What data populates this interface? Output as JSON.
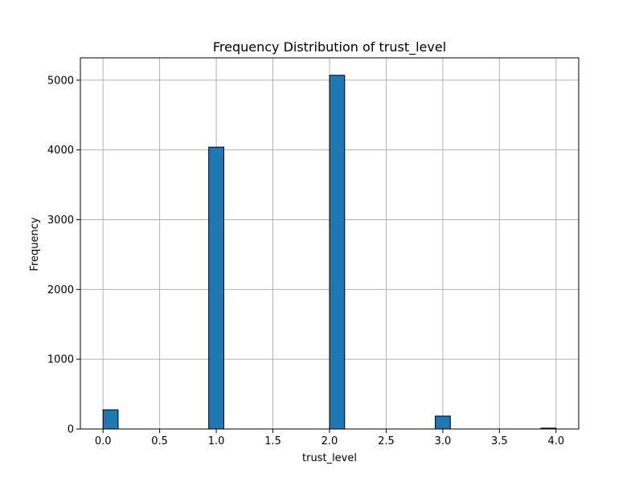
{
  "chart_data": {
    "type": "bar",
    "title": "Frequency Distribution of trust_level",
    "xlabel": "trust_level",
    "ylabel": "Frequency",
    "xlim": [
      -0.2,
      4.2
    ],
    "ylim": [
      0,
      5320
    ],
    "xticks": [
      0.0,
      0.5,
      1.0,
      1.5,
      2.0,
      2.5,
      3.0,
      3.5,
      4.0
    ],
    "xtick_labels": [
      "0.0",
      "0.5",
      "1.0",
      "1.5",
      "2.0",
      "2.5",
      "3.0",
      "3.5",
      "4.0"
    ],
    "yticks": [
      0,
      1000,
      2000,
      3000,
      4000,
      5000
    ],
    "ytick_labels": [
      "0",
      "1000",
      "2000",
      "3000",
      "4000",
      "5000"
    ],
    "grid": true,
    "bin_width": 0.1333,
    "bins": [
      {
        "x0": 0.0,
        "x1": 0.1333,
        "value": 275
      },
      {
        "x0": 0.9333,
        "x1": 1.0667,
        "value": 4040
      },
      {
        "x0": 2.0,
        "x1": 2.1333,
        "value": 5070
      },
      {
        "x0": 2.9333,
        "x1": 3.0667,
        "value": 185
      },
      {
        "x0": 3.8667,
        "x1": 4.0,
        "value": 12
      }
    ],
    "bar_color": "#1f77b4",
    "edge_color": "#000000",
    "grid_color": "#b0b0b0"
  }
}
